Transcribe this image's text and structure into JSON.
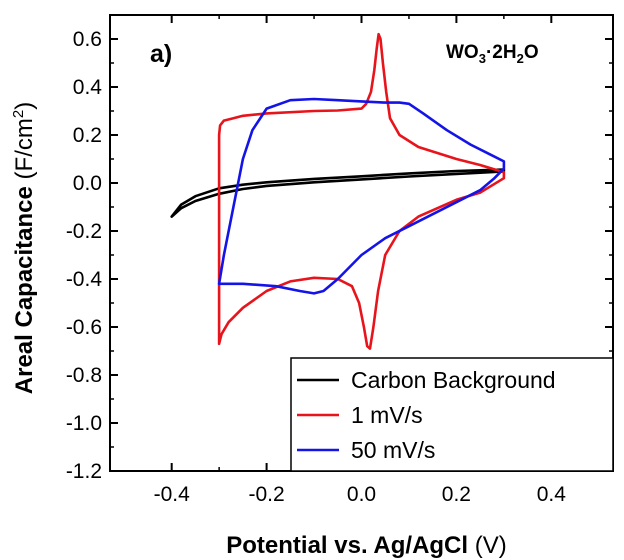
{
  "chart_data": {
    "type": "line",
    "panel_label": "a)",
    "annotation": {
      "base": "WO",
      "sub1": "3",
      "mid": "·2H",
      "sub2": "2",
      "tail": "O"
    },
    "xlabel": {
      "bold": "Potential vs. Ag/AgCl",
      "normal": "(V)"
    },
    "ylabel": {
      "bold": "Areal Capacitance",
      "normal_open": "(F/cm",
      "sup": "2",
      "normal_close": ")"
    },
    "xlim": [
      -0.53,
      0.53
    ],
    "ylim": [
      -1.2,
      0.7
    ],
    "xticks": [
      -0.4,
      -0.2,
      0.0,
      0.2,
      0.4
    ],
    "xtick_labels": [
      "-0.4",
      "-0.2",
      "0.0",
      "0.2",
      "0.4"
    ],
    "yticks": [
      -1.2,
      -1.0,
      -0.8,
      -0.6,
      -0.4,
      -0.2,
      0.0,
      0.2,
      0.4,
      0.6
    ],
    "ytick_labels": [
      "-1.2",
      "-1.0",
      "-0.8",
      "-0.6",
      "-0.4",
      "-0.2",
      "0.0",
      "0.2",
      "0.4",
      "0.6"
    ],
    "grid": false,
    "legend_position": "bottom-right",
    "series": [
      {
        "name": "Carbon Background",
        "color": "#000000",
        "points": [
          [
            -0.4,
            -0.14
          ],
          [
            -0.38,
            -0.105
          ],
          [
            -0.35,
            -0.075
          ],
          [
            -0.3,
            -0.045
          ],
          [
            -0.25,
            -0.025
          ],
          [
            -0.2,
            -0.012
          ],
          [
            -0.1,
            0.003
          ],
          [
            0.0,
            0.015
          ],
          [
            0.1,
            0.027
          ],
          [
            0.2,
            0.038
          ],
          [
            0.3,
            0.048
          ],
          [
            0.3,
            0.056
          ],
          [
            0.2,
            0.05
          ],
          [
            0.1,
            0.04
          ],
          [
            0.0,
            0.028
          ],
          [
            -0.1,
            0.017
          ],
          [
            -0.2,
            0.003
          ],
          [
            -0.25,
            -0.007
          ],
          [
            -0.3,
            -0.022
          ],
          [
            -0.35,
            -0.055
          ],
          [
            -0.38,
            -0.09
          ],
          [
            -0.4,
            -0.14
          ]
        ]
      },
      {
        "name": "1 mV/s",
        "color": "#e8141c",
        "points": [
          [
            -0.3,
            -0.67
          ],
          [
            -0.3,
            0.2
          ],
          [
            -0.298,
            0.24
          ],
          [
            -0.29,
            0.26
          ],
          [
            -0.27,
            0.27
          ],
          [
            -0.25,
            0.28
          ],
          [
            -0.2,
            0.29
          ],
          [
            -0.1,
            0.3
          ],
          [
            -0.05,
            0.302
          ],
          [
            0.0,
            0.31
          ],
          [
            0.01,
            0.33
          ],
          [
            0.02,
            0.38
          ],
          [
            0.027,
            0.47
          ],
          [
            0.032,
            0.56
          ],
          [
            0.036,
            0.62
          ],
          [
            0.04,
            0.6
          ],
          [
            0.045,
            0.5
          ],
          [
            0.052,
            0.38
          ],
          [
            0.06,
            0.27
          ],
          [
            0.08,
            0.2
          ],
          [
            0.12,
            0.15
          ],
          [
            0.2,
            0.1
          ],
          [
            0.25,
            0.075
          ],
          [
            0.3,
            0.045
          ],
          [
            0.3,
            0.02
          ],
          [
            0.25,
            -0.04
          ],
          [
            0.2,
            -0.07
          ],
          [
            0.12,
            -0.14
          ],
          [
            0.08,
            -0.2
          ],
          [
            0.05,
            -0.3
          ],
          [
            0.035,
            -0.45
          ],
          [
            0.025,
            -0.6
          ],
          [
            0.018,
            -0.69
          ],
          [
            0.012,
            -0.68
          ],
          [
            0.005,
            -0.6
          ],
          [
            -0.005,
            -0.5
          ],
          [
            -0.02,
            -0.43
          ],
          [
            -0.05,
            -0.4
          ],
          [
            -0.1,
            -0.395
          ],
          [
            -0.15,
            -0.41
          ],
          [
            -0.2,
            -0.45
          ],
          [
            -0.25,
            -0.52
          ],
          [
            -0.28,
            -0.58
          ],
          [
            -0.295,
            -0.63
          ],
          [
            -0.3,
            -0.67
          ]
        ]
      },
      {
        "name": "50 mV/s",
        "color": "#1414e8",
        "points": [
          [
            -0.3,
            -0.42
          ],
          [
            -0.29,
            -0.3
          ],
          [
            -0.27,
            -0.1
          ],
          [
            -0.25,
            0.1
          ],
          [
            -0.23,
            0.22
          ],
          [
            -0.2,
            0.31
          ],
          [
            -0.15,
            0.345
          ],
          [
            -0.1,
            0.35
          ],
          [
            -0.05,
            0.345
          ],
          [
            0.0,
            0.34
          ],
          [
            0.05,
            0.335
          ],
          [
            0.08,
            0.335
          ],
          [
            0.1,
            0.33
          ],
          [
            0.13,
            0.29
          ],
          [
            0.18,
            0.22
          ],
          [
            0.23,
            0.16
          ],
          [
            0.27,
            0.12
          ],
          [
            0.3,
            0.09
          ],
          [
            0.3,
            0.06
          ],
          [
            0.28,
            0.02
          ],
          [
            0.25,
            -0.03
          ],
          [
            0.2,
            -0.08
          ],
          [
            0.15,
            -0.13
          ],
          [
            0.1,
            -0.18
          ],
          [
            0.05,
            -0.23
          ],
          [
            0.0,
            -0.3
          ],
          [
            -0.05,
            -0.4
          ],
          [
            -0.08,
            -0.45
          ],
          [
            -0.1,
            -0.46
          ],
          [
            -0.13,
            -0.45
          ],
          [
            -0.18,
            -0.43
          ],
          [
            -0.25,
            -0.42
          ],
          [
            -0.3,
            -0.42
          ]
        ]
      }
    ]
  }
}
